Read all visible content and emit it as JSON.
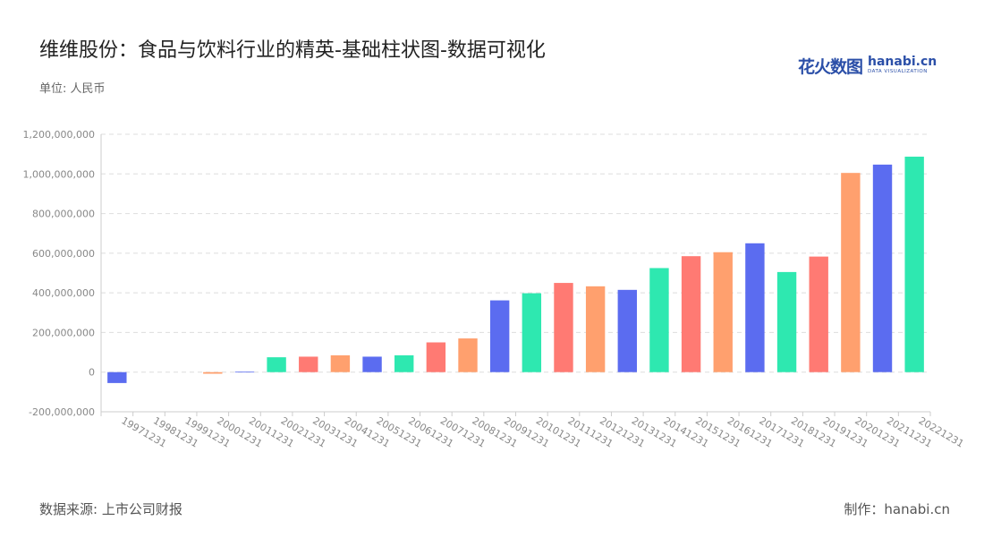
{
  "title": "维维股份：食品与饮料行业的精英-基础柱状图-数据可视化",
  "unit_label": "单位: 人民币",
  "logo": {
    "cn": "花火数图",
    "en": "hanabi.cn",
    "sub": "DATA VISUALIZATION"
  },
  "footer": {
    "source": "数据来源: 上市公司财报",
    "credit": "制作：hanabi.cn"
  },
  "colors": [
    "#5b6cf0",
    "#2ee8b0",
    "#ff7a73",
    "#ffa06e"
  ],
  "chart_data": {
    "type": "bar",
    "ylim": [
      -200000000,
      1200000000
    ],
    "yticks": [
      -200000000,
      0,
      200000000,
      400000000,
      600000000,
      800000000,
      1000000000,
      1200000000
    ],
    "ytick_labels": [
      "-200,000,000",
      "0",
      "200,000,000",
      "400,000,000",
      "600,000,000",
      "800,000,000",
      "1,000,000,000",
      "1,200,000,000"
    ],
    "grid": true,
    "categories": [
      "19971231",
      "19981231",
      "19991231",
      "20001231",
      "20011231",
      "20021231",
      "20031231",
      "20041231",
      "20051231",
      "20061231",
      "20071231",
      "20081231",
      "20091231",
      "20101231",
      "20111231",
      "20121231",
      "20131231",
      "20141231",
      "20151231",
      "20161231",
      "20171231",
      "20181231",
      "20191231",
      "20201231",
      "20211231",
      "20221231"
    ],
    "values": [
      -55000000,
      0,
      0,
      -8000000,
      2000000,
      75000000,
      78000000,
      85000000,
      78000000,
      85000000,
      150000000,
      170000000,
      362000000,
      398000000,
      450000000,
      433000000,
      415000000,
      525000000,
      585000000,
      605000000,
      650000000,
      505000000,
      583000000,
      1005000000,
      1047000000,
      1087000000
    ],
    "bar_colors": [
      "#5b6cf0",
      "#2ee8b0",
      "#ff7a73",
      "#ffa06e",
      "#5b6cf0",
      "#2ee8b0",
      "#ff7a73",
      "#ffa06e",
      "#5b6cf0",
      "#2ee8b0",
      "#ff7a73",
      "#ffa06e",
      "#5b6cf0",
      "#2ee8b0",
      "#ff7a73",
      "#ffa06e",
      "#5b6cf0",
      "#2ee8b0",
      "#ff7a73",
      "#ffa06e",
      "#5b6cf0",
      "#2ee8b0",
      "#ff7a73",
      "#ffa06e",
      "#5b6cf0",
      "#2ee8b0"
    ]
  }
}
